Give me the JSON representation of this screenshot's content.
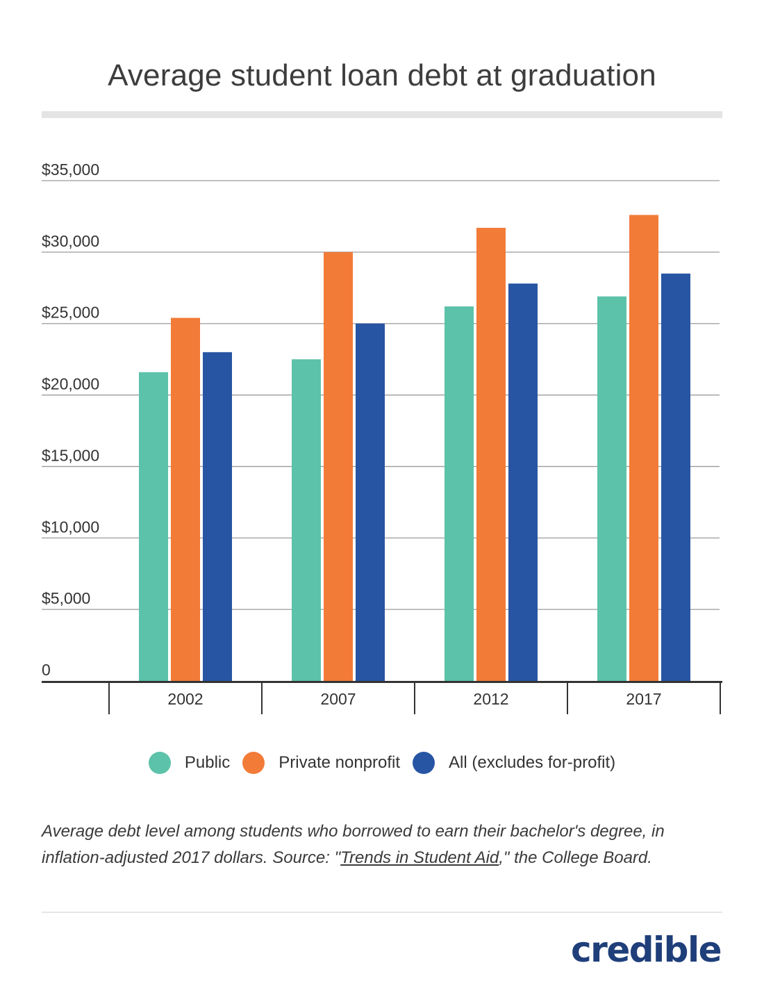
{
  "chart_data": {
    "type": "bar",
    "title": "Average student loan debt at graduation",
    "categories": [
      "2002",
      "2007",
      "2012",
      "2017"
    ],
    "series": [
      {
        "name": "Public",
        "color": "#5cc2a9",
        "values": [
          21600,
          22500,
          26200,
          26900
        ]
      },
      {
        "name": "Private nonprofit",
        "color": "#f27b38",
        "values": [
          25400,
          30000,
          31700,
          32600
        ]
      },
      {
        "name": "All (excludes for-profit)",
        "color": "#2855a3",
        "values": [
          23000,
          25000,
          27800,
          28500
        ]
      }
    ],
    "ylim": [
      0,
      35000
    ],
    "yticks": [
      0,
      5000,
      10000,
      15000,
      20000,
      25000,
      30000,
      35000
    ],
    "ytick_labels": [
      "0",
      "$5,000",
      "$10,000",
      "$15,000",
      "$20,000",
      "$25,000",
      "$30,000",
      "$35,000"
    ],
    "grid": true,
    "legend_position": "bottom",
    "xlabel": "",
    "ylabel": ""
  },
  "caption": {
    "part1": "Average debt level among students who borrowed to earn their bachelor's degree, in inflation-adjusted 2017 dollars. Source: \"",
    "link": "Trends in Student Aid",
    "part2": ",\" the College Board."
  },
  "brand": {
    "name": "credible",
    "color": "#1f3f7a"
  }
}
